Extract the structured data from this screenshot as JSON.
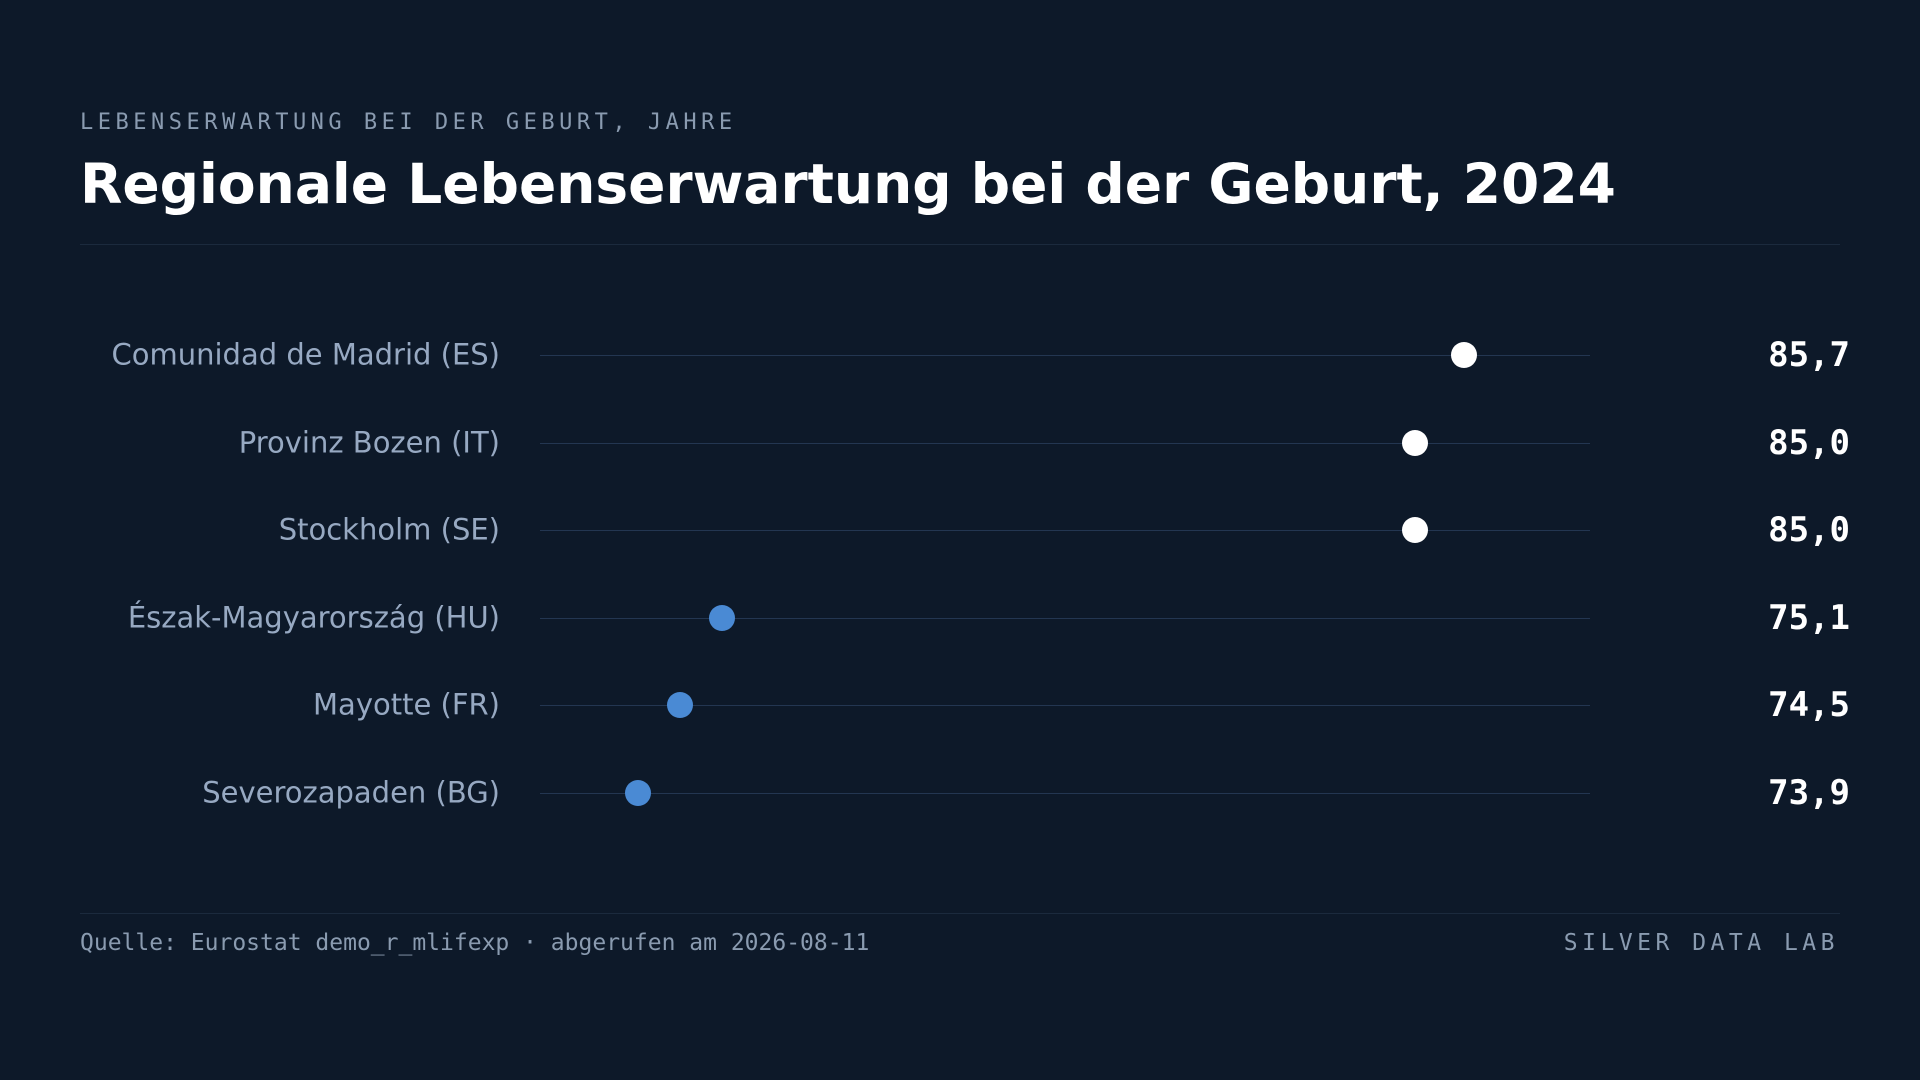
{
  "header": {
    "kicker": "LEBENSERWARTUNG BEI DER GEBURT, JAHRE",
    "title": "Regionale Lebenserwartung bei der Geburt, 2024"
  },
  "footer": {
    "source": "Quelle: Eurostat demo_r_mlifexp · abgerufen am 2026-08-11",
    "brand": "SILVER DATA LAB"
  },
  "colors": {
    "background": "#0d1929",
    "high": "#ffffff",
    "low": "#4a8ad4"
  },
  "chart_data": {
    "type": "scatter",
    "title": "Regionale Lebenserwartung bei der Geburt, 2024",
    "subtitle": "LEBENSERWARTUNG BEI DER GEBURT, JAHRE",
    "xlim": [
      72.5,
      87.5
    ],
    "grid": false,
    "categories": [
      "Comunidad de Madrid (ES)",
      "Provinz Bozen (IT)",
      "Stockholm (SE)",
      "Észak-Magyarország (HU)",
      "Mayotte (FR)",
      "Severozapaden (BG)"
    ],
    "values": [
      85.7,
      85.0,
      85.0,
      75.1,
      74.5,
      73.9
    ],
    "value_labels": [
      "85,7",
      "85,0",
      "85,0",
      "75,1",
      "74,5",
      "73,9"
    ],
    "dot_groups": [
      "high",
      "high",
      "high",
      "low",
      "low",
      "low"
    ]
  }
}
